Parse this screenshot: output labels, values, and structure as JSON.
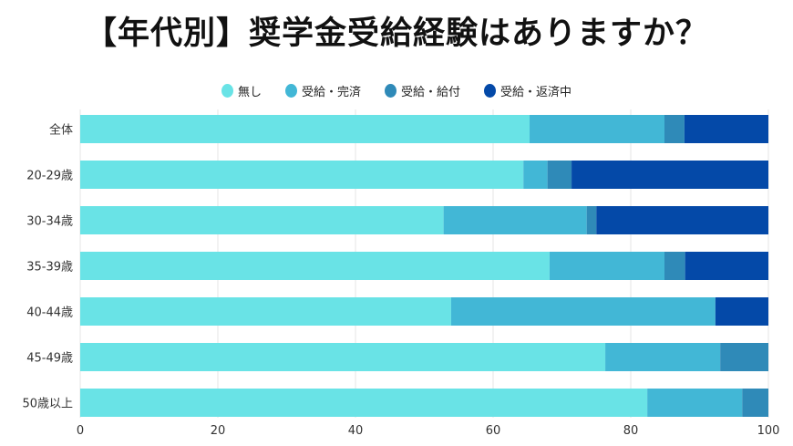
{
  "title": "【年代別】奨学金受給経験はありますか？",
  "chart_data": {
    "type": "bar",
    "orientation": "horizontal",
    "stacked": true,
    "title": "【年代別】奨学金受給経験はありますか？",
    "categories": [
      "全体",
      "20-29歳",
      "30-34歳",
      "35-39歳",
      "40-44歳",
      "45-49歳",
      "50歳以上"
    ],
    "series": [
      {
        "name": "無し",
        "color": "#69e3e6",
        "values": [
          65.3,
          64.4,
          52.8,
          68.2,
          53.9,
          76.3,
          82.4
        ]
      },
      {
        "name": "受給・完済",
        "color": "#42b7d6",
        "values": [
          19.6,
          3.5,
          20.8,
          16.7,
          38.4,
          16.7,
          13.8
        ]
      },
      {
        "name": "受給・給付",
        "color": "#2f8ab8",
        "values": [
          2.9,
          3.5,
          1.4,
          3.0,
          0,
          7.0,
          3.8
        ]
      },
      {
        "name": "受給・返済中",
        "color": "#0449a8",
        "values": [
          12.2,
          28.6,
          25.0,
          12.1,
          7.7,
          0,
          0
        ]
      }
    ],
    "xlim": [
      0,
      100
    ],
    "xticks": [
      0,
      20,
      40,
      60,
      80,
      100
    ],
    "grid": true,
    "legend": "top"
  }
}
